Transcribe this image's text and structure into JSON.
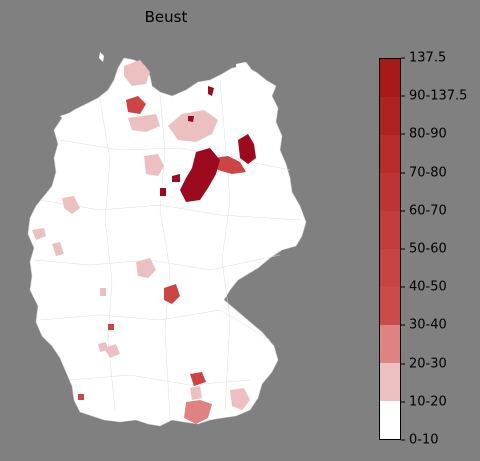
{
  "title": "Beust",
  "colorbar": {
    "colors": [
      "#ffffff",
      "#ecc0c0",
      "#de8282",
      "#cd4a4a",
      "#c84444",
      "#c33b3b",
      "#be3333",
      "#b72b2b",
      "#b02222",
      "#a81a1a",
      "#a01313",
      "#960a1e"
    ],
    "tick_labels": [
      "0-10",
      "10-20",
      "20-30",
      "30-40",
      "40-50",
      "50-60",
      "60-70",
      "70-80",
      "80-90",
      "90-137.5",
      "137.5"
    ]
  },
  "map": {
    "land_color": "#ffffff",
    "region_value_colors": {
      "light": "#ecc0c0",
      "medium": "#de8282",
      "red": "#cc4444",
      "dark": "#9b0a1e"
    }
  }
}
